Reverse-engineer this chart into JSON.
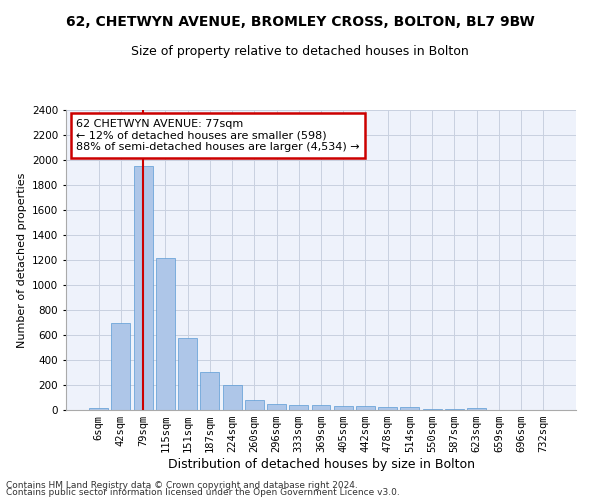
{
  "title1": "62, CHETWYN AVENUE, BROMLEY CROSS, BOLTON, BL7 9BW",
  "title2": "Size of property relative to detached houses in Bolton",
  "xlabel": "Distribution of detached houses by size in Bolton",
  "ylabel": "Number of detached properties",
  "bar_labels": [
    "6sqm",
    "42sqm",
    "79sqm",
    "115sqm",
    "151sqm",
    "187sqm",
    "224sqm",
    "260sqm",
    "296sqm",
    "333sqm",
    "369sqm",
    "405sqm",
    "442sqm",
    "478sqm",
    "514sqm",
    "550sqm",
    "587sqm",
    "623sqm",
    "659sqm",
    "696sqm",
    "732sqm"
  ],
  "bar_values": [
    15,
    700,
    1950,
    1220,
    575,
    305,
    200,
    80,
    47,
    37,
    37,
    30,
    30,
    22,
    22,
    5,
    5,
    15,
    2,
    2,
    2
  ],
  "bar_color": "#aec6e8",
  "bar_edge_color": "#5b9bd5",
  "marker_idx": 2,
  "annotation_line1": "62 CHETWYN AVENUE: 77sqm",
  "annotation_line2": "← 12% of detached houses are smaller (598)",
  "annotation_line3": "88% of semi-detached houses are larger (4,534) →",
  "annotation_box_color": "#ffffff",
  "annotation_border_color": "#cc0000",
  "marker_color": "#cc0000",
  "ylim": [
    0,
    2400
  ],
  "yticks": [
    0,
    200,
    400,
    600,
    800,
    1000,
    1200,
    1400,
    1600,
    1800,
    2000,
    2200,
    2400
  ],
  "footnote1": "Contains HM Land Registry data © Crown copyright and database right 2024.",
  "footnote2": "Contains public sector information licensed under the Open Government Licence v3.0.",
  "background_color": "#eef2fb",
  "grid_color": "#c8d0e0",
  "title1_fontsize": 10,
  "title2_fontsize": 9,
  "ylabel_fontsize": 8,
  "xlabel_fontsize": 9,
  "tick_fontsize": 7.5,
  "footnote_fontsize": 6.5
}
